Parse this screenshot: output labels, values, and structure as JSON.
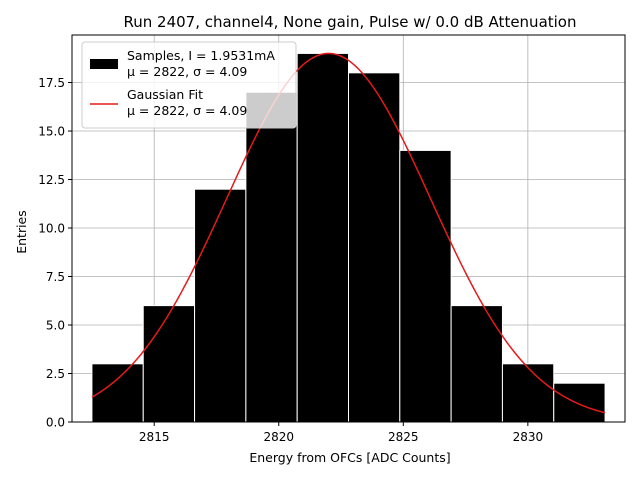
{
  "chart_data": {
    "type": "bar",
    "title": "Run 2407, channel4, None gain, Pulse w/ 0.0 dB Attenuation",
    "xlabel": "Energy from OFCs [ADC Counts]",
    "ylabel": "Entries",
    "xlim": [
      2811.7,
      2833.9
    ],
    "ylim": [
      0,
      19.95
    ],
    "xticks": [
      2815,
      2820,
      2825,
      2830
    ],
    "yticks": [
      0.0,
      2.5,
      5.0,
      7.5,
      10.0,
      12.5,
      15.0,
      17.5
    ],
    "grid": true,
    "legend_position": "upper left",
    "series": [
      {
        "name": "Samples, I = 1.9531mA",
        "stats": "μ = 2822, σ = 4.09",
        "kind": "histogram",
        "color": "#000000",
        "edgecolor": "#ffffff",
        "bin_edges": [
          2812.5,
          2814.56,
          2816.62,
          2818.68,
          2820.74,
          2822.8,
          2824.86,
          2826.92,
          2828.98,
          2831.04,
          2833.1
        ],
        "values": [
          3,
          6,
          12,
          17,
          19,
          18,
          14,
          6,
          3,
          2
        ]
      },
      {
        "name": "Gaussian Fit",
        "stats": "μ = 2822, σ = 4.09",
        "kind": "line",
        "color": "#e41a1c",
        "amplitude": 19.0,
        "mean": 2822.0,
        "sigma": 4.09,
        "x_range": [
          2812.5,
          2833.1
        ]
      }
    ]
  }
}
